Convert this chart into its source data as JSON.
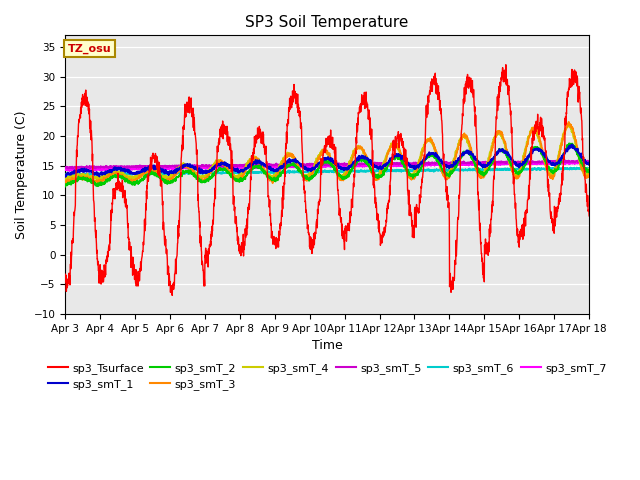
{
  "title": "SP3 Soil Temperature",
  "xlabel": "Time",
  "ylabel": "Soil Temperature (C)",
  "ylim": [
    -10,
    37
  ],
  "yticks": [
    -10,
    -5,
    0,
    5,
    10,
    15,
    20,
    25,
    30,
    35
  ],
  "x_labels": [
    "Apr 3",
    "Apr 4",
    "Apr 5",
    "Apr 6",
    "Apr 7",
    "Apr 8",
    "Apr 9",
    "Apr 10",
    "Apr 11",
    "Apr 12",
    "Apr 13",
    "Apr 14",
    "Apr 15",
    "Apr 16",
    "Apr 17",
    "Apr 18"
  ],
  "tz_label": "TZ_osu",
  "colors": {
    "sp3_Tsurface": "#FF0000",
    "sp3_smT_1": "#0000CC",
    "sp3_smT_2": "#00CC00",
    "sp3_smT_3": "#FF8800",
    "sp3_smT_4": "#CCCC00",
    "sp3_smT_5": "#CC00CC",
    "sp3_smT_6": "#00CCCC",
    "sp3_smT_7": "#FF00FF"
  },
  "plot_bg_color": "#E8E8E8",
  "fig_bg_color": "#FFFFFF"
}
